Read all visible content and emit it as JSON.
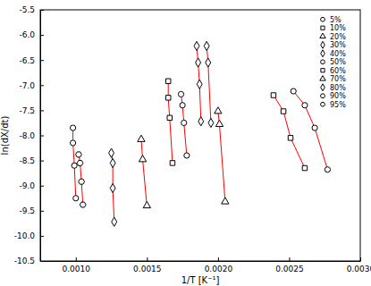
{
  "chart_data": {
    "type": "scatter",
    "x_label": "1/T [K⁻¹]",
    "y_label": "ln(dX/dt)",
    "xlim": [
      0.00075,
      0.003
    ],
    "ylim": [
      -10.5,
      -5.5
    ],
    "xticks": [
      {
        "value": 0.001,
        "label": "0.0010"
      },
      {
        "value": 0.0015,
        "label": "0.0015"
      },
      {
        "value": 0.002,
        "label": "0.0020"
      },
      {
        "value": 0.0025,
        "label": "0.0025"
      },
      {
        "value": 0.003,
        "label": "0.0030"
      }
    ],
    "yticks": [
      -5.5,
      {
        "value": -6,
        "label": "-6.0"
      },
      -6.5,
      {
        "value": -7,
        "label": "-7.0"
      },
      -7.5,
      {
        "value": -8,
        "label": "-8.0"
      },
      -8.5,
      {
        "value": -9,
        "label": "-9.0"
      },
      -9.5,
      {
        "value": -10,
        "label": "-10.0"
      },
      -10.5
    ],
    "legend": "top-right",
    "series": [
      {
        "name": "5%",
        "color": "#000000",
        "marker": "circle",
        "line_style": "solid",
        "x": [
          0.00253,
          0.00261,
          0.00268,
          0.00277
        ],
        "values": [
          -7.12,
          -7.4,
          -7.85,
          -8.68
        ]
      },
      {
        "name": "10%",
        "color": "#000000",
        "marker": "square",
        "line_style": "solid",
        "x": [
          0.00239,
          0.00246,
          0.00251,
          0.00261
        ],
        "values": [
          -7.2,
          -7.52,
          -8.05,
          -8.65
        ]
      },
      {
        "name": "20%",
        "color": "#000000",
        "marker": "triangle",
        "line_style": "solid",
        "x": [
          0.002,
          0.00201,
          0.00205
        ],
        "values": [
          -7.52,
          -7.78,
          -9.32
        ]
      },
      {
        "name": "30%",
        "color": "#000000",
        "marker": "diamond",
        "line_style": "solid",
        "x": [
          0.00192,
          0.00193,
          0.00195
        ],
        "values": [
          -6.22,
          -6.55,
          -7.75
        ]
      },
      {
        "name": "40%",
        "color": "#000000",
        "marker": "diamond",
        "line_style": "solid",
        "x": [
          0.00185,
          0.00186,
          0.00187,
          0.00188
        ],
        "values": [
          -6.22,
          -6.55,
          -6.98,
          -7.72
        ]
      },
      {
        "name": "50%",
        "color": "#000000",
        "marker": "circle",
        "line_style": "solid",
        "x": [
          0.00174,
          0.00175,
          0.00176,
          0.00178
        ],
        "values": [
          -7.18,
          -7.4,
          -7.75,
          -8.4
        ]
      },
      {
        "name": "60%",
        "color": "#000000",
        "marker": "square",
        "line_style": "solid",
        "x": [
          0.00165,
          0.00165,
          0.00166,
          0.00168
        ],
        "values": [
          -6.92,
          -7.25,
          -7.65,
          -8.55
        ]
      },
      {
        "name": "70%",
        "color": "#000000",
        "marker": "triangle",
        "line_style": "solid",
        "x": [
          0.00146,
          0.00147,
          0.0015
        ],
        "values": [
          -8.08,
          -8.48,
          -9.4
        ]
      },
      {
        "name": "80%",
        "color": "#000000",
        "marker": "diamond",
        "line_style": "solid",
        "x": [
          0.00125,
          0.00126,
          0.00126,
          0.00127
        ],
        "values": [
          -8.35,
          -8.55,
          -9.05,
          -9.72
        ]
      },
      {
        "name": "90%",
        "color": "#000000",
        "marker": "hexagon",
        "line_style": "solid",
        "x": [
          0.00102,
          0.00103,
          0.00104,
          0.00105
        ],
        "values": [
          -8.38,
          -8.55,
          -8.92,
          -9.38
        ]
      },
      {
        "name": "95%",
        "color": "#000000",
        "marker": "circle",
        "line_style": "solid",
        "x": [
          0.00098,
          0.00098,
          0.00099,
          0.001
        ],
        "values": [
          -7.85,
          -8.15,
          -8.6,
          -9.25
        ]
      }
    ]
  }
}
